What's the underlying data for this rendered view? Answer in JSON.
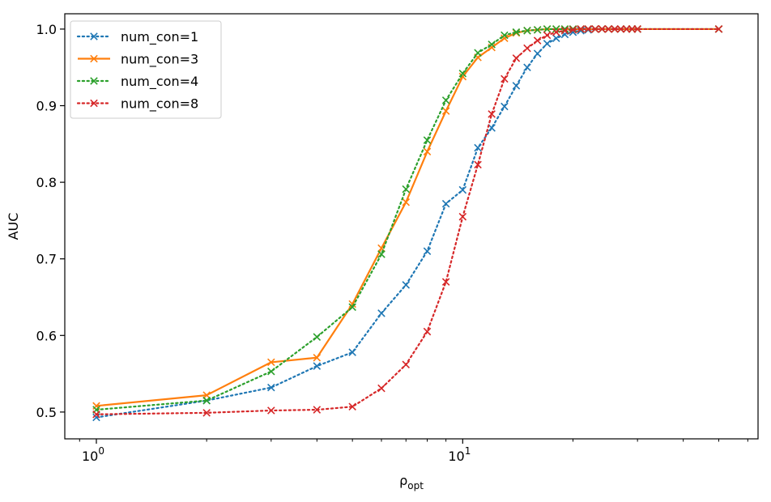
{
  "chart_data": {
    "type": "line",
    "title": "",
    "xlabel_main": "ρ",
    "xlabel_sub": "opt",
    "ylabel": "AUC",
    "xscale": "log",
    "xlim": [
      0.82,
      64
    ],
    "ylim": [
      0.465,
      1.02
    ],
    "yticks": [
      {
        "value": 0.5,
        "label": "0.5"
      },
      {
        "value": 0.6,
        "label": "0.6"
      },
      {
        "value": 0.7,
        "label": "0.7"
      },
      {
        "value": 0.8,
        "label": "0.8"
      },
      {
        "value": 0.9,
        "label": "0.9"
      },
      {
        "value": 1.0,
        "label": "1.0"
      }
    ],
    "xticks_major": [
      {
        "value": 1,
        "base": "10",
        "exp": "0"
      },
      {
        "value": 10,
        "base": "10",
        "exp": "1"
      }
    ],
    "legend_position": "top-left",
    "grid": false,
    "series": [
      {
        "name": "num_con=1",
        "color": "#1f77b4",
        "style": "dotted",
        "marker": "x",
        "x": [
          1,
          2,
          3,
          4,
          5,
          6,
          7,
          8,
          9,
          10,
          11,
          12,
          13,
          14,
          15,
          16,
          17,
          18,
          19,
          20,
          21,
          22,
          23,
          24,
          25,
          26,
          27,
          28,
          29,
          30,
          50
        ],
        "y": [
          0.493,
          0.515,
          0.532,
          0.56,
          0.578,
          0.629,
          0.666,
          0.71,
          0.772,
          0.79,
          0.845,
          0.871,
          0.899,
          0.926,
          0.95,
          0.968,
          0.981,
          0.988,
          0.993,
          0.996,
          0.998,
          0.999,
          1.0,
          1.0,
          1.0,
          1.0,
          1.0,
          1.0,
          1.0,
          1.0,
          1.0
        ]
      },
      {
        "name": "num_con=3",
        "color": "#ff7f0e",
        "style": "solid",
        "marker": "x",
        "x": [
          1,
          2,
          3,
          4,
          5,
          6,
          7,
          8,
          9,
          10,
          11,
          12,
          13,
          14,
          15,
          16,
          17,
          18,
          19,
          20,
          21,
          22,
          23,
          24,
          25,
          26,
          27,
          28,
          29,
          30,
          50
        ],
        "y": [
          0.508,
          0.522,
          0.565,
          0.571,
          0.641,
          0.714,
          0.774,
          0.84,
          0.893,
          0.938,
          0.963,
          0.976,
          0.988,
          0.995,
          0.998,
          0.999,
          1.0,
          1.0,
          1.0,
          1.0,
          1.0,
          1.0,
          1.0,
          1.0,
          1.0,
          1.0,
          1.0,
          1.0,
          1.0,
          1.0,
          1.0
        ]
      },
      {
        "name": "num_con=4",
        "color": "#2ca02c",
        "style": "dotted",
        "marker": "x",
        "x": [
          1,
          2,
          3,
          4,
          5,
          6,
          7,
          8,
          9,
          10,
          11,
          12,
          13,
          14,
          15,
          16,
          17,
          18,
          19,
          20,
          21,
          22,
          23,
          24,
          25,
          26,
          27,
          28,
          29,
          30,
          50
        ],
        "y": [
          0.503,
          0.515,
          0.553,
          0.598,
          0.637,
          0.706,
          0.791,
          0.855,
          0.907,
          0.942,
          0.969,
          0.98,
          0.992,
          0.996,
          0.998,
          0.999,
          1.0,
          1.0,
          1.0,
          1.0,
          1.0,
          1.0,
          1.0,
          1.0,
          1.0,
          1.0,
          1.0,
          1.0,
          1.0,
          1.0,
          1.0
        ]
      },
      {
        "name": "num_con=8",
        "color": "#d62728",
        "style": "dotted",
        "marker": "x",
        "x": [
          1,
          2,
          3,
          4,
          5,
          6,
          7,
          8,
          9,
          10,
          11,
          12,
          13,
          14,
          15,
          16,
          17,
          18,
          19,
          20,
          21,
          22,
          23,
          24,
          25,
          26,
          27,
          28,
          29,
          30,
          50
        ],
        "y": [
          0.497,
          0.499,
          0.502,
          0.503,
          0.507,
          0.531,
          0.562,
          0.605,
          0.67,
          0.755,
          0.823,
          0.889,
          0.935,
          0.962,
          0.975,
          0.985,
          0.992,
          0.996,
          0.998,
          0.999,
          1.0,
          1.0,
          1.0,
          1.0,
          1.0,
          1.0,
          1.0,
          1.0,
          1.0,
          1.0,
          1.0
        ]
      }
    ]
  }
}
